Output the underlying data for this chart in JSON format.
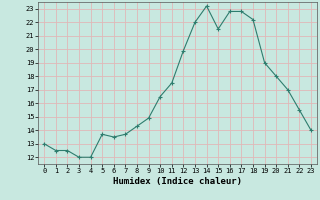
{
  "x": [
    0,
    1,
    2,
    3,
    4,
    5,
    6,
    7,
    8,
    9,
    10,
    11,
    12,
    13,
    14,
    15,
    16,
    17,
    18,
    19,
    20,
    21,
    22,
    23
  ],
  "y": [
    13,
    12.5,
    12.5,
    12,
    12,
    13.7,
    13.5,
    13.7,
    14.3,
    14.9,
    16.5,
    17.5,
    19.9,
    22.0,
    23.2,
    21.5,
    22.8,
    22.8,
    22.2,
    19.0,
    18.0,
    17.0,
    15.5,
    14.0
  ],
  "line_color": "#2e7d6e",
  "marker": "+",
  "marker_size": 3.0,
  "bg_color": "#c8e8e0",
  "grid_color": "#e0b8b8",
  "xlabel": "Humidex (Indice chaleur)",
  "xlabel_fontsize": 6.5,
  "ylim": [
    11.5,
    23.5
  ],
  "xlim": [
    -0.5,
    23.5
  ],
  "yticks": [
    12,
    13,
    14,
    15,
    16,
    17,
    18,
    19,
    20,
    21,
    22,
    23
  ],
  "xticks": [
    0,
    1,
    2,
    3,
    4,
    5,
    6,
    7,
    8,
    9,
    10,
    11,
    12,
    13,
    14,
    15,
    16,
    17,
    18,
    19,
    20,
    21,
    22,
    23
  ],
  "tick_fontsize": 5.0,
  "line_width": 0.8
}
